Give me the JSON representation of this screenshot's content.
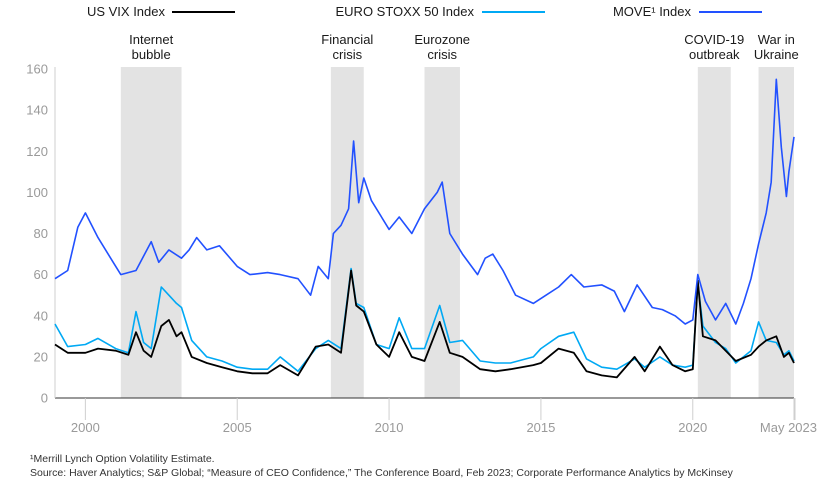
{
  "chart_data": {
    "type": "line",
    "title": "",
    "xlabel": "",
    "ylabel": "",
    "ylim": [
      0,
      160
    ],
    "xlim": [
      "1999-01",
      "2023-05"
    ],
    "y_ticks": [
      0,
      20,
      40,
      60,
      80,
      100,
      120,
      140,
      160
    ],
    "x_tick_labels": [
      {
        "x": "2000-01",
        "label": "2000"
      },
      {
        "x": "2005-01",
        "label": "2005"
      },
      {
        "x": "2010-01",
        "label": "2010"
      },
      {
        "x": "2015-01",
        "label": "2015"
      },
      {
        "x": "2020-01",
        "label": "2020"
      },
      {
        "x": "2023-05",
        "label": "May 2023"
      }
    ],
    "legend_position": "top",
    "bands": [
      {
        "label": [
          "Internet",
          "bubble"
        ],
        "start": "2001-03",
        "end": "2003-03"
      },
      {
        "label": [
          "Financial",
          "crisis"
        ],
        "start": "2008-02",
        "end": "2009-03"
      },
      {
        "label": [
          "Eurozone",
          "crisis"
        ],
        "start": "2011-03",
        "end": "2012-05"
      },
      {
        "label": [
          "COVID-19",
          "outbreak"
        ],
        "start": "2020-03",
        "end": "2021-04"
      },
      {
        "label": [
          "War in",
          "Ukraine"
        ],
        "start": "2022-03",
        "end": "2023-05"
      }
    ],
    "series": [
      {
        "name": "US VIX Index",
        "color": "#000000",
        "points": [
          [
            "1999-01",
            26
          ],
          [
            "1999-06",
            22
          ],
          [
            "2000-01",
            22
          ],
          [
            "2000-06",
            24
          ],
          [
            "2001-01",
            23
          ],
          [
            "2001-06",
            21
          ],
          [
            "2001-09",
            32
          ],
          [
            "2001-12",
            23
          ],
          [
            "2002-03",
            20
          ],
          [
            "2002-07",
            35
          ],
          [
            "2002-10",
            38
          ],
          [
            "2003-01",
            30
          ],
          [
            "2003-03",
            32
          ],
          [
            "2003-07",
            20
          ],
          [
            "2004-01",
            17
          ],
          [
            "2004-07",
            15
          ],
          [
            "2005-01",
            13
          ],
          [
            "2005-07",
            12
          ],
          [
            "2006-01",
            12
          ],
          [
            "2006-06",
            16
          ],
          [
            "2007-01",
            11
          ],
          [
            "2007-08",
            25
          ],
          [
            "2008-01",
            26
          ],
          [
            "2008-06",
            22
          ],
          [
            "2008-10",
            62
          ],
          [
            "2008-12",
            45
          ],
          [
            "2009-03",
            42
          ],
          [
            "2009-08",
            26
          ],
          [
            "2010-01",
            20
          ],
          [
            "2010-05",
            32
          ],
          [
            "2010-10",
            20
          ],
          [
            "2011-03",
            18
          ],
          [
            "2011-09",
            37
          ],
          [
            "2012-01",
            22
          ],
          [
            "2012-06",
            20
          ],
          [
            "2013-01",
            14
          ],
          [
            "2013-07",
            13
          ],
          [
            "2014-01",
            14
          ],
          [
            "2014-10",
            16
          ],
          [
            "2015-01",
            17
          ],
          [
            "2015-08",
            24
          ],
          [
            "2016-02",
            22
          ],
          [
            "2016-07",
            13
          ],
          [
            "2017-01",
            11
          ],
          [
            "2017-07",
            10
          ],
          [
            "2018-02",
            20
          ],
          [
            "2018-06",
            13
          ],
          [
            "2018-12",
            25
          ],
          [
            "2019-05",
            16
          ],
          [
            "2019-10",
            13
          ],
          [
            "2020-01",
            14
          ],
          [
            "2020-03",
            57
          ],
          [
            "2020-05",
            30
          ],
          [
            "2020-10",
            28
          ],
          [
            "2021-02",
            23
          ],
          [
            "2021-06",
            18
          ],
          [
            "2021-12",
            21
          ],
          [
            "2022-03",
            25
          ],
          [
            "2022-06",
            28
          ],
          [
            "2022-10",
            30
          ],
          [
            "2023-01",
            20
          ],
          [
            "2023-03",
            22
          ],
          [
            "2023-05",
            17
          ]
        ]
      },
      {
        "name": "EURO STOXX 50 Index",
        "color": "#00a9f4",
        "points": [
          [
            "1999-01",
            36
          ],
          [
            "1999-06",
            25
          ],
          [
            "2000-01",
            26
          ],
          [
            "2000-06",
            29
          ],
          [
            "2001-01",
            24
          ],
          [
            "2001-06",
            22
          ],
          [
            "2001-09",
            42
          ],
          [
            "2001-12",
            27
          ],
          [
            "2002-03",
            24
          ],
          [
            "2002-07",
            54
          ],
          [
            "2002-10",
            50
          ],
          [
            "2003-01",
            46
          ],
          [
            "2003-03",
            44
          ],
          [
            "2003-07",
            28
          ],
          [
            "2004-01",
            20
          ],
          [
            "2004-07",
            18
          ],
          [
            "2005-01",
            15
          ],
          [
            "2005-07",
            14
          ],
          [
            "2006-01",
            14
          ],
          [
            "2006-06",
            20
          ],
          [
            "2007-01",
            13
          ],
          [
            "2007-08",
            24
          ],
          [
            "2008-01",
            28
          ],
          [
            "2008-06",
            24
          ],
          [
            "2008-10",
            63
          ],
          [
            "2008-12",
            46
          ],
          [
            "2009-03",
            44
          ],
          [
            "2009-08",
            26
          ],
          [
            "2010-01",
            24
          ],
          [
            "2010-05",
            39
          ],
          [
            "2010-10",
            24
          ],
          [
            "2011-03",
            24
          ],
          [
            "2011-09",
            45
          ],
          [
            "2012-01",
            27
          ],
          [
            "2012-06",
            28
          ],
          [
            "2013-01",
            18
          ],
          [
            "2013-07",
            17
          ],
          [
            "2014-01",
            17
          ],
          [
            "2014-10",
            20
          ],
          [
            "2015-01",
            24
          ],
          [
            "2015-08",
            30
          ],
          [
            "2016-02",
            32
          ],
          [
            "2016-07",
            19
          ],
          [
            "2017-01",
            15
          ],
          [
            "2017-07",
            14
          ],
          [
            "2018-02",
            19
          ],
          [
            "2018-06",
            15
          ],
          [
            "2018-12",
            20
          ],
          [
            "2019-05",
            16
          ],
          [
            "2019-10",
            15
          ],
          [
            "2020-01",
            16
          ],
          [
            "2020-03",
            56
          ],
          [
            "2020-05",
            35
          ],
          [
            "2020-10",
            27
          ],
          [
            "2021-02",
            24
          ],
          [
            "2021-06",
            17
          ],
          [
            "2021-12",
            23
          ],
          [
            "2022-03",
            37
          ],
          [
            "2022-06",
            28
          ],
          [
            "2022-10",
            27
          ],
          [
            "2023-01",
            21
          ],
          [
            "2023-03",
            23
          ],
          [
            "2023-05",
            18
          ]
        ]
      },
      {
        "name": "MOVE¹ Index",
        "color": "#2251ff",
        "points": [
          [
            "1999-01",
            58
          ],
          [
            "1999-06",
            62
          ],
          [
            "1999-10",
            83
          ],
          [
            "2000-01",
            90
          ],
          [
            "2000-06",
            78
          ],
          [
            "2000-12",
            66
          ],
          [
            "2001-03",
            60
          ],
          [
            "2001-09",
            62
          ],
          [
            "2002-03",
            76
          ],
          [
            "2002-06",
            66
          ],
          [
            "2002-10",
            72
          ],
          [
            "2003-03",
            68
          ],
          [
            "2003-06",
            72
          ],
          [
            "2003-09",
            78
          ],
          [
            "2004-01",
            72
          ],
          [
            "2004-06",
            74
          ],
          [
            "2005-01",
            64
          ],
          [
            "2005-06",
            60
          ],
          [
            "2006-01",
            61
          ],
          [
            "2006-06",
            60
          ],
          [
            "2007-01",
            58
          ],
          [
            "2007-06",
            50
          ],
          [
            "2007-09",
            64
          ],
          [
            "2008-01",
            58
          ],
          [
            "2008-03",
            80
          ],
          [
            "2008-06",
            84
          ],
          [
            "2008-09",
            92
          ],
          [
            "2008-11",
            125
          ],
          [
            "2009-01",
            95
          ],
          [
            "2009-03",
            107
          ],
          [
            "2009-06",
            96
          ],
          [
            "2009-10",
            88
          ],
          [
            "2010-01",
            82
          ],
          [
            "2010-05",
            88
          ],
          [
            "2010-10",
            80
          ],
          [
            "2011-03",
            92
          ],
          [
            "2011-08",
            100
          ],
          [
            "2011-10",
            105
          ],
          [
            "2012-01",
            80
          ],
          [
            "2012-06",
            70
          ],
          [
            "2012-12",
            60
          ],
          [
            "2013-03",
            68
          ],
          [
            "2013-06",
            70
          ],
          [
            "2013-10",
            62
          ],
          [
            "2014-03",
            50
          ],
          [
            "2014-10",
            46
          ],
          [
            "2015-03",
            50
          ],
          [
            "2015-08",
            54
          ],
          [
            "2016-01",
            60
          ],
          [
            "2016-06",
            54
          ],
          [
            "2017-01",
            55
          ],
          [
            "2017-06",
            52
          ],
          [
            "2017-10",
            42
          ],
          [
            "2018-03",
            55
          ],
          [
            "2018-09",
            44
          ],
          [
            "2019-01",
            43
          ],
          [
            "2019-06",
            40
          ],
          [
            "2019-10",
            36
          ],
          [
            "2020-01",
            38
          ],
          [
            "2020-03",
            60
          ],
          [
            "2020-06",
            47
          ],
          [
            "2020-10",
            38
          ],
          [
            "2021-02",
            46
          ],
          [
            "2021-06",
            36
          ],
          [
            "2021-09",
            46
          ],
          [
            "2021-12",
            58
          ],
          [
            "2022-03",
            75
          ],
          [
            "2022-06",
            90
          ],
          [
            "2022-08",
            105
          ],
          [
            "2022-10",
            155
          ],
          [
            "2022-12",
            122
          ],
          [
            "2023-02",
            98
          ],
          [
            "2023-03",
            110
          ],
          [
            "2023-05",
            127
          ]
        ]
      }
    ]
  },
  "footnotes": [
    "¹Merrill Lynch Option Volatility Estimate.",
    "Source: Haver Analytics; S&P Global; “Measure of CEO Confidence,” The Conference Board, Feb 2023; Corporate Performance Analytics by McKinsey"
  ]
}
